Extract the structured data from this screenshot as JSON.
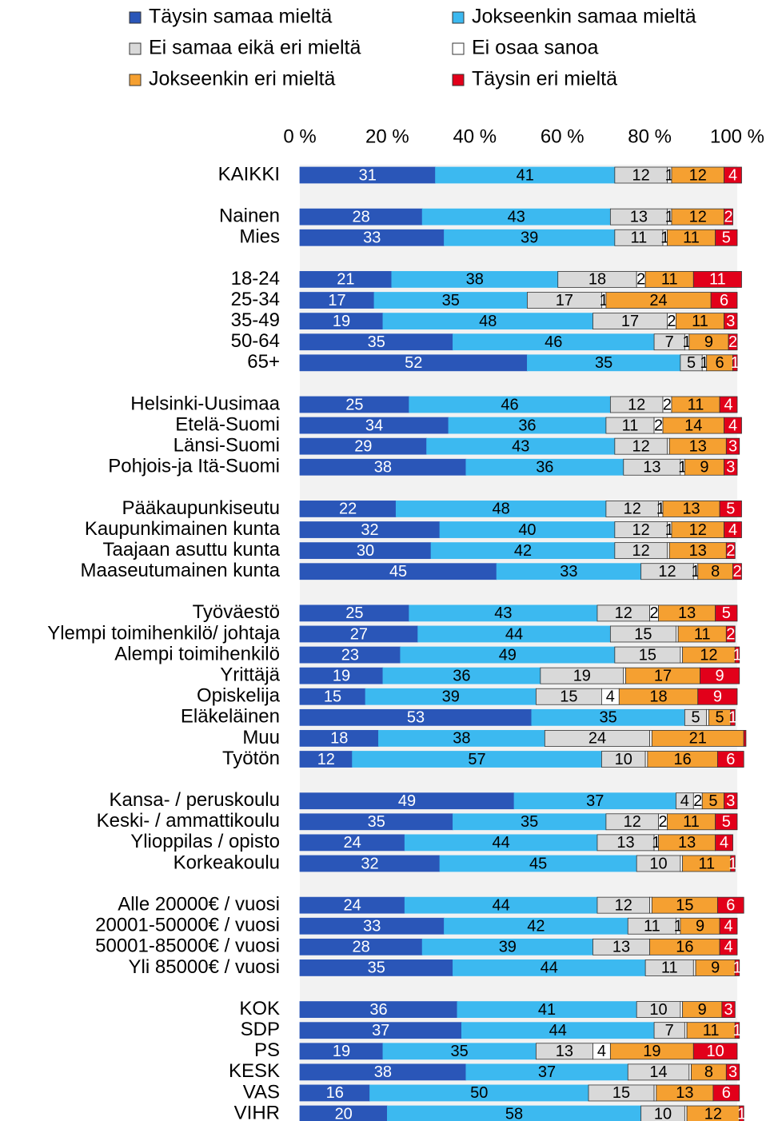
{
  "chart_data": {
    "type": "stacked_bar_horizontal",
    "categories": [
      "KAIKKI",
      null,
      "Nainen",
      "Mies",
      null,
      "18-24",
      "25-34",
      "35-49",
      "50-64",
      "65+",
      null,
      "Helsinki-Uusimaa",
      "Etelä-Suomi",
      "Länsi-Suomi",
      "Pohjois-ja Itä-Suomi",
      null,
      "Pääkaupunkiseutu",
      "Kaupunkimainen kunta",
      "Taajaan asuttu kunta",
      "Maaseutumainen kunta",
      null,
      "Työväestö",
      "Ylempi toimihenkilö/ johtaja",
      "Alempi toimihenkilö",
      "Yrittäjä",
      "Opiskelija",
      "Eläkeläinen",
      "Muu",
      "Työtön",
      null,
      "Kansa- / peruskoulu",
      "Keski- / ammattikoulu",
      "Ylioppilas / opisto",
      "Korkeakoulu",
      null,
      "Alle 20000€ / vuosi",
      "20001-50000€ / vuosi",
      "50001-85000€ / vuosi",
      "Yli 85000€ / vuosi",
      null,
      "KOK",
      "SDP",
      "PS",
      "KESK",
      "VAS",
      "VIHR"
    ],
    "series": [
      {
        "name": "Täysin samaa mieltä",
        "color": "#2a56b8",
        "values": [
          31,
          null,
          28,
          33,
          null,
          21,
          17,
          19,
          35,
          52,
          null,
          25,
          34,
          29,
          38,
          null,
          22,
          32,
          30,
          45,
          null,
          25,
          27,
          23,
          19,
          15,
          53,
          18,
          12,
          null,
          49,
          35,
          24,
          32,
          null,
          24,
          33,
          28,
          35,
          null,
          36,
          37,
          19,
          38,
          16,
          20
        ]
      },
      {
        "name": "Jokseenkin samaa mieltä",
        "color": "#3cb9f0",
        "values": [
          41,
          null,
          43,
          39,
          null,
          38,
          35,
          48,
          46,
          35,
          null,
          46,
          36,
          43,
          36,
          null,
          48,
          40,
          42,
          33,
          null,
          43,
          44,
          49,
          36,
          39,
          35,
          38,
          57,
          null,
          37,
          35,
          44,
          45,
          null,
          44,
          42,
          39,
          44,
          null,
          41,
          44,
          35,
          37,
          50,
          58
        ]
      },
      {
        "name": "Ei samaa eikä eri mieltä",
        "color": "#d9d9d9",
        "values": [
          12,
          null,
          13,
          11,
          null,
          18,
          17,
          17,
          7,
          5,
          null,
          12,
          11,
          12,
          13,
          null,
          12,
          12,
          12,
          12,
          null,
          12,
          15,
          15,
          19,
          15,
          5,
          24,
          10,
          null,
          4,
          12,
          13,
          10,
          null,
          12,
          11,
          13,
          11,
          null,
          10,
          7,
          13,
          14,
          15,
          10
        ]
      },
      {
        "name": "Ei osaa sanoa",
        "color": "#ffffff",
        "values": [
          1,
          null,
          1,
          1,
          null,
          2,
          1,
          2,
          1,
          1,
          null,
          2,
          2,
          0.5,
          1,
          null,
          1,
          1,
          0.5,
          1,
          null,
          2,
          0.5,
          0.5,
          0.5,
          4,
          0.5,
          0.5,
          0.5,
          null,
          2,
          2,
          1,
          0.5,
          null,
          0.5,
          1,
          0,
          0.5,
          null,
          0.5,
          0.5,
          4,
          0.5,
          0.5,
          0.5
        ]
      },
      {
        "name": "Jokseenkin eri mieltä",
        "color": "#f5a031",
        "values": [
          12,
          null,
          12,
          11,
          null,
          11,
          24,
          11,
          9,
          6,
          null,
          11,
          14,
          13,
          9,
          null,
          13,
          12,
          13,
          8,
          null,
          13,
          11,
          12,
          17,
          18,
          5,
          21,
          16,
          null,
          5,
          11,
          13,
          11,
          null,
          15,
          9,
          16,
          9,
          null,
          9,
          11,
          19,
          8,
          13,
          12
        ]
      },
      {
        "name": "Täysin eri mieltä",
        "color": "#e2001a",
        "values": [
          4,
          null,
          2,
          5,
          null,
          11,
          6,
          3,
          2,
          1,
          null,
          4,
          4,
          3,
          3,
          null,
          5,
          4,
          2,
          2,
          null,
          5,
          2,
          1,
          9,
          9,
          1,
          0.5,
          6,
          null,
          3,
          5,
          4,
          1,
          null,
          6,
          4,
          4,
          1,
          null,
          3,
          1,
          10,
          3,
          6,
          1
        ]
      }
    ],
    "xlim": [
      0,
      100
    ],
    "xticks": [
      {
        "value": 0,
        "label": "0 %"
      },
      {
        "value": 20,
        "label": "20 %"
      },
      {
        "value": 40,
        "label": "40 %"
      },
      {
        "value": 60,
        "label": "60 %"
      },
      {
        "value": 80,
        "label": "80 %"
      },
      {
        "value": 100,
        "label": "100 %"
      }
    ]
  }
}
